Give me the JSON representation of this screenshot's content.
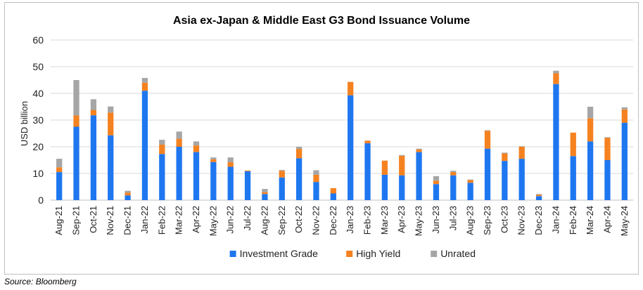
{
  "source_note": "Source: Bloomberg",
  "chart_data": {
    "type": "bar",
    "stacked": true,
    "title": "Asia ex-Japan & Middle East G3 Bond Issuance Volume",
    "xlabel": "",
    "ylabel": "USD billion",
    "ylim": [
      0,
      60
    ],
    "yticks": [
      0,
      10,
      20,
      30,
      40,
      50,
      60
    ],
    "grid": true,
    "legend_position": "bottom",
    "categories": [
      "Aug-21",
      "Sep-21",
      "Oct-21",
      "Nov-21",
      "Dec-21",
      "Jan-22",
      "Feb-22",
      "Mar-22",
      "Apr-22",
      "May-22",
      "Jun-22",
      "Jul-22",
      "Aug-22",
      "Sep-22",
      "Oct-22",
      "Nov-22",
      "Dec-22",
      "Jan-23",
      "Feb-23",
      "Mar-23",
      "Apr-23",
      "May-23",
      "Jun-23",
      "Jul-23",
      "Aug-23",
      "Sep-23",
      "Oct-23",
      "Nov-23",
      "Dec-23",
      "Jan-24",
      "Feb-24",
      "Mar-24",
      "Apr-24",
      "May-24"
    ],
    "series": [
      {
        "name": "Investment Grade",
        "color": "#1f77f0",
        "values": [
          10.5,
          27.5,
          31.8,
          24.3,
          1.8,
          41.0,
          17.3,
          20.0,
          18.0,
          14.3,
          12.5,
          10.8,
          2.3,
          8.5,
          15.7,
          6.8,
          2.5,
          39.3,
          21.3,
          9.5,
          9.3,
          18.0,
          6.0,
          9.3,
          6.5,
          19.3,
          14.7,
          15.5,
          1.5,
          43.5,
          16.5,
          22.0,
          15.0,
          29.0
        ]
      },
      {
        "name": "High Yield",
        "color": "#f58220",
        "values": [
          1.8,
          4.2,
          2.0,
          8.5,
          1.0,
          3.0,
          3.5,
          3.0,
          2.5,
          1.0,
          1.7,
          0.3,
          0.7,
          2.5,
          3.5,
          2.7,
          2.0,
          5.0,
          1.0,
          5.3,
          7.3,
          1.0,
          1.3,
          1.2,
          1.0,
          6.7,
          2.8,
          4.5,
          0.5,
          4.0,
          8.8,
          8.7,
          8.3,
          5.0
        ]
      },
      {
        "name": "Unrated",
        "color": "#a6a6a6",
        "values": [
          3.2,
          13.3,
          4.0,
          2.3,
          0.7,
          1.8,
          1.8,
          2.7,
          1.5,
          0.7,
          1.8,
          0,
          1.2,
          0.3,
          0.8,
          1.7,
          0,
          0,
          0,
          0,
          0.3,
          0.3,
          1.7,
          0.5,
          0.2,
          0.2,
          0.3,
          0.2,
          0.3,
          1.0,
          0,
          4.3,
          0.3,
          0.8
        ]
      }
    ]
  }
}
